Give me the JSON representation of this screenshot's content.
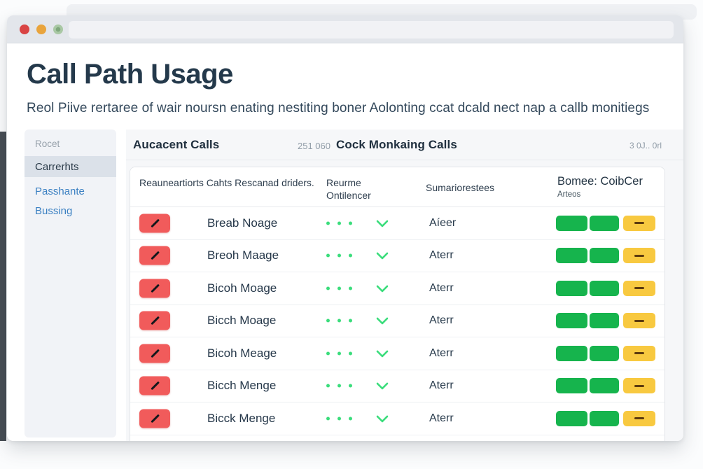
{
  "page": {
    "title": "Call Path Usage",
    "subtitle": "Reol Piive rertaree of wair noursn enating nestiting boner Aolonting ccat dcald nect nap a callb monitiegs"
  },
  "window": {
    "traffic_lights": [
      "close",
      "minimize",
      "zoom"
    ]
  },
  "sidebar": {
    "items": [
      {
        "label": "Rocet",
        "state": "section"
      },
      {
        "label": "Carrerhts",
        "state": "selected"
      },
      {
        "label": "Passhante",
        "state": "link"
      },
      {
        "label": "Bussing",
        "state": "link"
      }
    ]
  },
  "panel_header": {
    "left_title": "Aucacent Calls",
    "left_value": "251 060",
    "right_title": "Cock Monkaing Calls",
    "right_value": "3 0J.. 0rl"
  },
  "table": {
    "columns": [
      {
        "label": "Reauneartiorts Cahts Rescanad driders."
      },
      {
        "label": "Reurme Ontilencer"
      },
      {
        "label": "Sumariorestees"
      },
      {
        "label": "Bomee: CoibCer",
        "sublabel": "Arteos"
      }
    ],
    "rows": [
      {
        "name": "Breab Noage",
        "status": "Aíeer",
        "badges": [
          "green",
          "green",
          "yellow"
        ]
      },
      {
        "name": "Breoh Maage",
        "status": "Aterr",
        "badges": [
          "green",
          "green",
          "yellow"
        ]
      },
      {
        "name": "Bicoh Moage",
        "status": "Aterr",
        "badges": [
          "green",
          "green",
          "yellow"
        ]
      },
      {
        "name": "Bicch Moage",
        "status": "Aterr",
        "badges": [
          "green",
          "green",
          "yellow"
        ]
      },
      {
        "name": "Bicoh Meage",
        "status": "Aterr",
        "badges": [
          "green",
          "green",
          "yellow"
        ]
      },
      {
        "name": "Bicch Menge",
        "status": "Aterr",
        "badges": [
          "green",
          "green",
          "yellow"
        ]
      },
      {
        "name": "Bicck Menge",
        "status": "Aterr",
        "badges": [
          "green",
          "green",
          "yellow"
        ]
      }
    ]
  },
  "colors": {
    "action_red": "#f15b5b",
    "status_green": "#3bdd7c",
    "badge_green": "#16b44d",
    "badge_yellow": "#f8c940",
    "link_blue": "#3b80c2",
    "title_dark": "#24394b"
  }
}
